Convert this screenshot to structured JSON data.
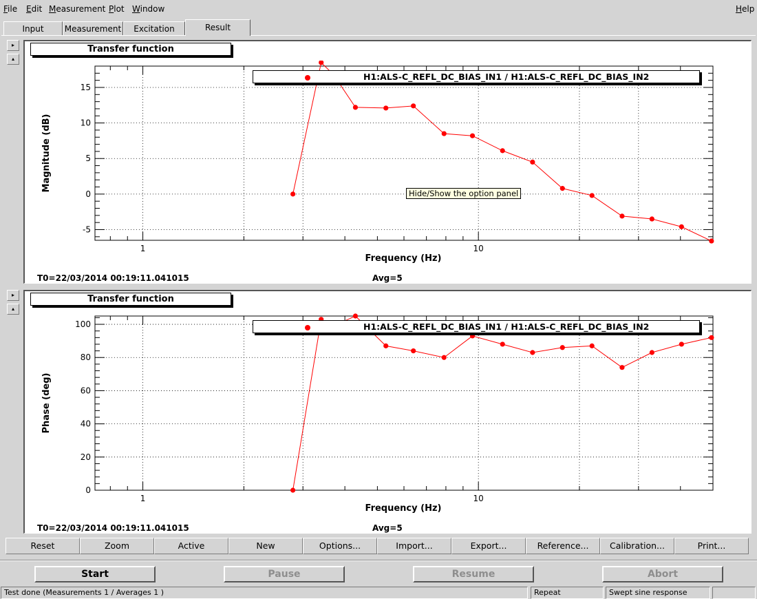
{
  "menubar": {
    "items": [
      {
        "underline": "F",
        "rest": "ile"
      },
      {
        "underline": "E",
        "rest": "dit"
      },
      {
        "underline": "M",
        "rest": "easurement"
      },
      {
        "underline": "P",
        "rest": "lot"
      },
      {
        "underline": "W",
        "rest": "indow"
      }
    ],
    "help": {
      "underline": "H",
      "rest": "elp"
    }
  },
  "tabs": [
    "Input",
    "Measurement",
    "Excitation",
    "Result"
  ],
  "active_tab": "Result",
  "side_buttons": {
    "expand": "▸",
    "collapse": "▴"
  },
  "tooltip": "Hide/Show the option panel",
  "plots": [
    {
      "title": "Transfer function",
      "legend": "H1:ALS-C_REFL_DC_BIAS_IN1 / H1:ALS-C_REFL_DC_BIAS_IN2",
      "info_left": "T0=22/03/2014 00:19:11.041015",
      "info_right": "Avg=5",
      "series_color": "#ff0000",
      "chart_data": {
        "type": "scatter",
        "xscale": "log",
        "xlim": [
          0.72,
          50
        ],
        "ylim": [
          -6.5,
          18
        ],
        "xlabel": "Frequency (Hz)",
        "ylabel": "Magnitude (dB)",
        "xticks": [
          1,
          10
        ],
        "yticks": [
          -5,
          0,
          5,
          10,
          15
        ],
        "grid": true,
        "x": [
          2.8,
          3.4,
          3.7,
          4.3,
          5.3,
          6.4,
          7.9,
          9.6,
          11.8,
          14.5,
          17.8,
          21.8,
          26.8,
          32.9,
          40.3,
          49.5
        ],
        "y": [
          0,
          18.5,
          16.8,
          12.2,
          12.1,
          12.4,
          8.5,
          8.2,
          6.1,
          4.5,
          0.8,
          -0.2,
          -3.1,
          -3.5,
          -4.6,
          -6.6
        ]
      }
    },
    {
      "title": "Transfer function",
      "legend": "H1:ALS-C_REFL_DC_BIAS_IN1 / H1:ALS-C_REFL_DC_BIAS_IN2",
      "info_left": "T0=22/03/2014 00:19:11.041015",
      "info_right": "Avg=5",
      "series_color": "#ff0000",
      "chart_data": {
        "type": "scatter",
        "xscale": "log",
        "xlim": [
          0.72,
          50
        ],
        "ylim": [
          0,
          105
        ],
        "xlabel": "Frequency (Hz)",
        "ylabel": "Phase (deg)",
        "xticks": [
          1,
          10
        ],
        "yticks": [
          0,
          20,
          40,
          60,
          80,
          100
        ],
        "grid": true,
        "x": [
          2.8,
          3.4,
          3.7,
          4.3,
          5.3,
          6.4,
          7.9,
          9.6,
          11.8,
          14.5,
          17.8,
          21.8,
          26.8,
          32.9,
          40.3,
          49.5
        ],
        "y": [
          0,
          103,
          99,
          105,
          87,
          84,
          80,
          93,
          88,
          83,
          86,
          87,
          74,
          83,
          88,
          92
        ]
      }
    }
  ],
  "toolbar": [
    "Reset",
    "Zoom",
    "Active",
    "New",
    "Options...",
    "Import...",
    "Export...",
    "Reference...",
    "Calibration...",
    "Print..."
  ],
  "controls": [
    {
      "label": "Start",
      "enabled": true
    },
    {
      "label": "Pause",
      "enabled": false
    },
    {
      "label": "Resume",
      "enabled": false
    },
    {
      "label": "Abort",
      "enabled": false
    }
  ],
  "status": {
    "message": "Test done (Measurements 1 / Averages 1 )",
    "mode": "Repeat",
    "type": "Swept sine response"
  }
}
